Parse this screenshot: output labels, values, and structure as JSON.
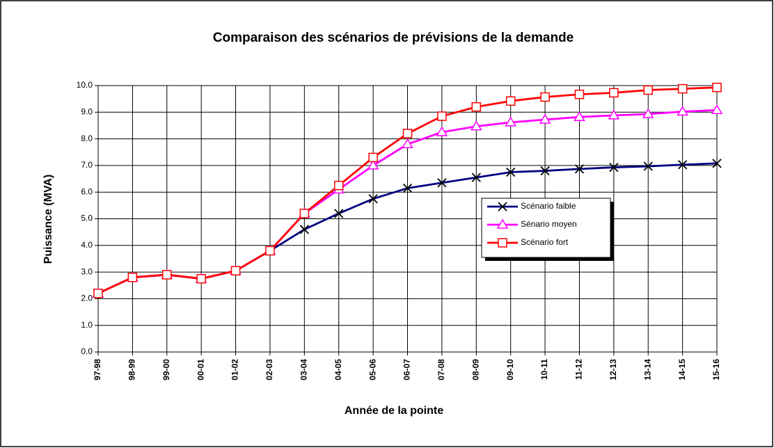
{
  "chart_data": {
    "type": "line",
    "title": "Comparaison des scénarios de prévisions de la demande",
    "xlabel": "Année de la pointe",
    "ylabel": "Puissance (MVA)",
    "categories": [
      "97-98",
      "98-99",
      "99-00",
      "00-01",
      "01-02",
      "02-03",
      "03-04",
      "04-05",
      "05-06",
      "06-07",
      "07-08",
      "08-09",
      "09-10",
      "10-11",
      "11-12",
      "12-13",
      "13-14",
      "14-15",
      "15-16"
    ],
    "series": [
      {
        "name": "Scénario faible",
        "color": "#000080",
        "marker": "x",
        "values": [
          2.2,
          2.8,
          2.9,
          2.75,
          3.05,
          3.8,
          4.6,
          5.2,
          5.75,
          6.15,
          6.35,
          6.55,
          6.75,
          6.8,
          6.87,
          6.93,
          6.97,
          7.03,
          7.08
        ]
      },
      {
        "name": "Sénario moyen",
        "color": "#ff00ff",
        "marker": "triangle",
        "values": [
          2.2,
          2.8,
          2.9,
          2.75,
          3.05,
          3.8,
          5.2,
          6.1,
          7.0,
          7.8,
          8.25,
          8.47,
          8.62,
          8.72,
          8.82,
          8.88,
          8.93,
          9.02,
          9.08
        ]
      },
      {
        "name": "Scénario fort",
        "color": "#ff0000",
        "marker": "square",
        "values": [
          2.2,
          2.8,
          2.9,
          2.75,
          3.05,
          3.8,
          5.2,
          6.25,
          7.3,
          8.2,
          8.85,
          9.2,
          9.42,
          9.57,
          9.67,
          9.73,
          9.83,
          9.88,
          9.93
        ]
      }
    ],
    "ylim": [
      0,
      10
    ],
    "yticks": [
      {
        "value": 0,
        "label": "0.0"
      },
      {
        "value": 1,
        "label": "1.0"
      },
      {
        "value": 2,
        "label": "2.0"
      },
      {
        "value": 3,
        "label": "3.0"
      },
      {
        "value": 4,
        "label": "4.0"
      },
      {
        "value": 5,
        "label": "5.0"
      },
      {
        "value": 6,
        "label": "6.0"
      },
      {
        "value": 7,
        "label": "7.0"
      },
      {
        "value": 8,
        "label": "8.0"
      },
      {
        "value": 9,
        "label": "9.0"
      },
      {
        "value": 10,
        "label": "10.0"
      }
    ],
    "grid": true
  }
}
